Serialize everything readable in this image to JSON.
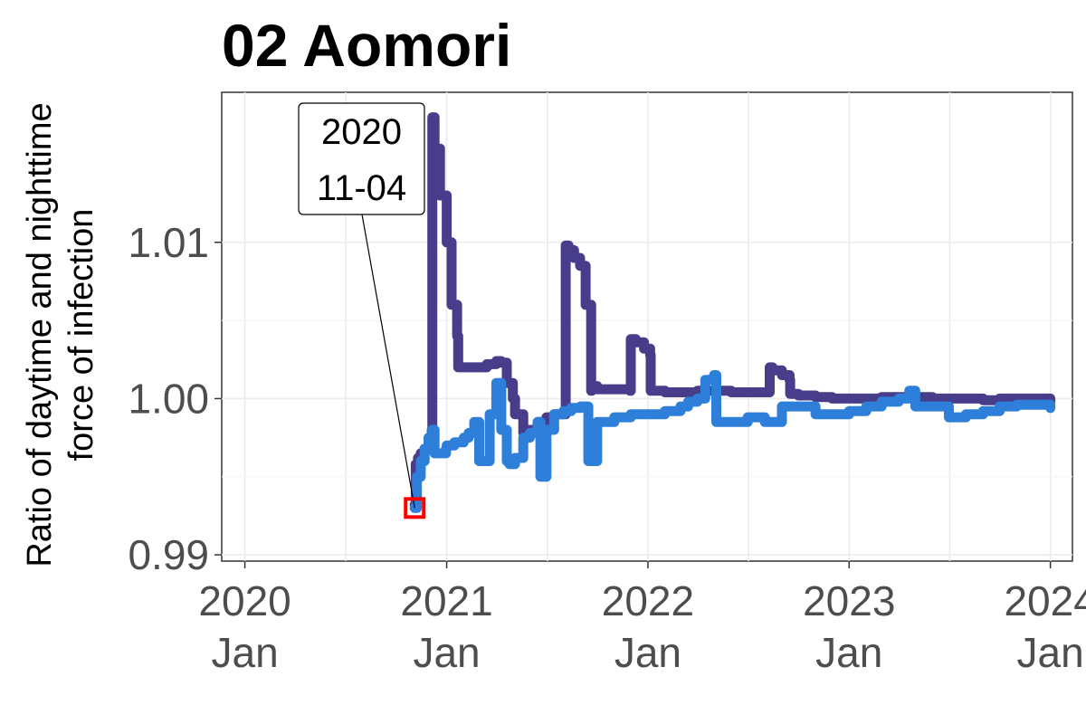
{
  "chart_data": {
    "type": "line",
    "title": "02 Aomori",
    "xlabel": "",
    "ylabel": "Ratio of daytime and nighttime\nforce of infection",
    "x_ticks": [
      {
        "date": "2020-01-01",
        "label": [
          "2020",
          "Jan"
        ]
      },
      {
        "date": "2021-01-01",
        "label": [
          "2021",
          "Jan"
        ]
      },
      {
        "date": "2022-01-01",
        "label": [
          "2022",
          "Jan"
        ]
      },
      {
        "date": "2023-01-01",
        "label": [
          "2023",
          "Jan"
        ]
      },
      {
        "date": "2024-01-01",
        "label": [
          "2024",
          "Jan"
        ]
      }
    ],
    "y_ticks": [
      0.99,
      1.0,
      1.01
    ],
    "y_tick_labels": [
      "0.99",
      "1.00",
      "1.01"
    ],
    "xlim": [
      "2019-11-20",
      "2024-02-10"
    ],
    "ylim": [
      0.9896,
      1.0196
    ],
    "grid": true,
    "series": [
      {
        "color": "#483d8b",
        "x": [
          "2020-11-04",
          "2020-11-06",
          "2020-11-10",
          "2020-11-15",
          "2020-11-22",
          "2020-11-29",
          "2020-12-05",
          "2020-12-06",
          "2020-12-10",
          "2020-12-20",
          "2021-01-01",
          "2021-01-10",
          "2021-01-20",
          "2021-01-22",
          "2021-02-01",
          "2021-02-15",
          "2021-03-01",
          "2021-03-15",
          "2021-04-01",
          "2021-04-10",
          "2021-04-20",
          "2021-05-01",
          "2021-05-05",
          "2021-05-20",
          "2021-06-01",
          "2021-06-15",
          "2021-07-01",
          "2021-07-15",
          "2021-08-01",
          "2021-08-05",
          "2021-08-10",
          "2021-08-20",
          "2021-08-31",
          "2021-09-10",
          "2021-09-20",
          "2021-09-21",
          "2021-10-01",
          "2021-11-01",
          "2021-11-30",
          "2021-12-01",
          "2021-12-10",
          "2021-12-25",
          "2022-01-05",
          "2022-01-06",
          "2022-02-01",
          "2022-03-01",
          "2022-04-01",
          "2022-05-01",
          "2022-06-01",
          "2022-07-01",
          "2022-08-01",
          "2022-08-10",
          "2022-08-15",
          "2022-09-01",
          "2022-09-15",
          "2022-09-16",
          "2022-10-01",
          "2022-11-01",
          "2022-12-01",
          "2023-01-01",
          "2023-02-01",
          "2023-03-01",
          "2023-04-01",
          "2023-05-01",
          "2023-06-01",
          "2023-07-01",
          "2023-08-01",
          "2023-09-01",
          "2023-10-01",
          "2023-11-01",
          "2023-12-01",
          "2024-01-01"
        ],
        "y": [
          0.9932,
          0.9958,
          0.9962,
          0.9965,
          0.9968,
          0.9972,
          0.998,
          1.018,
          1.016,
          1.013,
          1.01,
          1.006,
          1.004,
          1.002,
          1.002,
          1.002,
          1.002,
          1.0022,
          1.0024,
          1.0023,
          1.001,
          1.0,
          0.999,
          0.9978,
          0.998,
          0.9985,
          0.9988,
          0.999,
          0.999,
          1.0098,
          1.0095,
          1.009,
          1.0085,
          1.006,
          1.0005,
          1.0008,
          1.0006,
          1.0006,
          1.0005,
          1.0038,
          1.0036,
          1.0032,
          1.0028,
          1.0005,
          1.0004,
          1.0004,
          1.0005,
          1.0005,
          1.0004,
          1.0004,
          1.0004,
          1.002,
          1.0018,
          1.0015,
          1.0012,
          1.0003,
          1.0002,
          1.0001,
          1.0,
          1.0,
          1.0,
          1.0001,
          1.0001,
          1.0001,
          1.0,
          1.0,
          1.0,
          0.9999,
          1.0,
          1.0,
          1.0,
          0.9998
        ]
      },
      {
        "color": "#2e7fd9",
        "x": [
          "2020-11-04",
          "2020-11-08",
          "2020-11-15",
          "2020-11-22",
          "2020-11-29",
          "2020-12-06",
          "2020-12-10",
          "2020-12-31",
          "2021-01-01",
          "2021-01-15",
          "2021-02-01",
          "2021-02-10",
          "2021-02-20",
          "2021-03-01",
          "2021-03-10",
          "2021-03-20",
          "2021-04-01",
          "2021-04-10",
          "2021-04-20",
          "2021-04-25",
          "2021-05-05",
          "2021-05-20",
          "2021-06-01",
          "2021-06-15",
          "2021-06-20",
          "2021-07-01",
          "2021-07-15",
          "2021-08-01",
          "2021-08-15",
          "2021-09-01",
          "2021-09-15",
          "2021-10-01",
          "2021-11-01",
          "2021-12-01",
          "2022-01-01",
          "2022-02-01",
          "2022-03-01",
          "2022-03-15",
          "2022-04-01",
          "2022-04-15",
          "2022-05-01",
          "2022-05-05",
          "2022-06-01",
          "2022-07-01",
          "2022-08-01",
          "2022-09-01",
          "2022-10-01",
          "2022-11-01",
          "2022-12-01",
          "2023-01-01",
          "2023-02-01",
          "2023-03-01",
          "2023-04-01",
          "2023-04-20",
          "2023-05-01",
          "2023-06-01",
          "2023-07-01",
          "2023-08-01",
          "2023-09-01",
          "2023-10-01",
          "2023-11-01",
          "2023-12-01",
          "2024-01-01"
        ],
        "y": [
          0.993,
          0.995,
          0.996,
          0.9968,
          0.9975,
          0.998,
          0.9965,
          0.9968,
          0.997,
          0.9972,
          0.9975,
          0.9978,
          0.9985,
          0.996,
          0.996,
          0.999,
          1.001,
          0.998,
          0.996,
          0.9958,
          0.9962,
          0.9975,
          0.9978,
          0.9985,
          0.995,
          0.998,
          0.999,
          0.9992,
          0.9994,
          0.9995,
          0.996,
          0.9985,
          0.9988,
          0.999,
          0.999,
          0.9992,
          0.9995,
          0.9998,
          1.0,
          1.0012,
          1.0015,
          0.9985,
          0.9985,
          0.9988,
          0.9985,
          0.9995,
          0.9995,
          0.999,
          0.999,
          0.9992,
          0.9995,
          0.9998,
          1.0,
          1.0005,
          0.9995,
          0.9995,
          0.9988,
          0.999,
          0.9992,
          0.9995,
          0.9996,
          0.9996,
          0.9994
        ]
      }
    ],
    "annotation": {
      "date": "2020-11-04",
      "value": 0.993,
      "label": [
        "2020",
        "11-04"
      ],
      "marker_color": "#ff0000"
    }
  }
}
